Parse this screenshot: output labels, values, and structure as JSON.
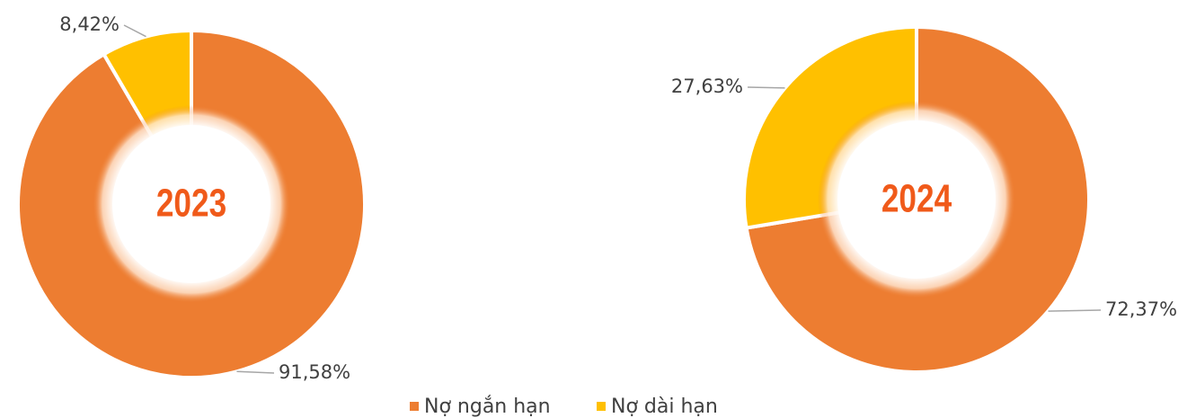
{
  "chart_data": [
    {
      "type": "pie",
      "center_label": "2023",
      "categories": [
        "Nợ ngắn hạn",
        "Nợ dài hạn"
      ],
      "values": [
        91.58,
        8.42
      ],
      "value_labels": [
        "91,58%",
        "8,42%"
      ],
      "colors": [
        "#ed7d31",
        "#ffc000"
      ]
    },
    {
      "type": "pie",
      "center_label": "2024",
      "categories": [
        "Nợ ngắn hạn",
        "Nợ dài hạn"
      ],
      "values": [
        72.37,
        27.63
      ],
      "value_labels": [
        "72,37%",
        "27,63%"
      ],
      "colors": [
        "#ed7d31",
        "#ffc000"
      ]
    }
  ]
}
